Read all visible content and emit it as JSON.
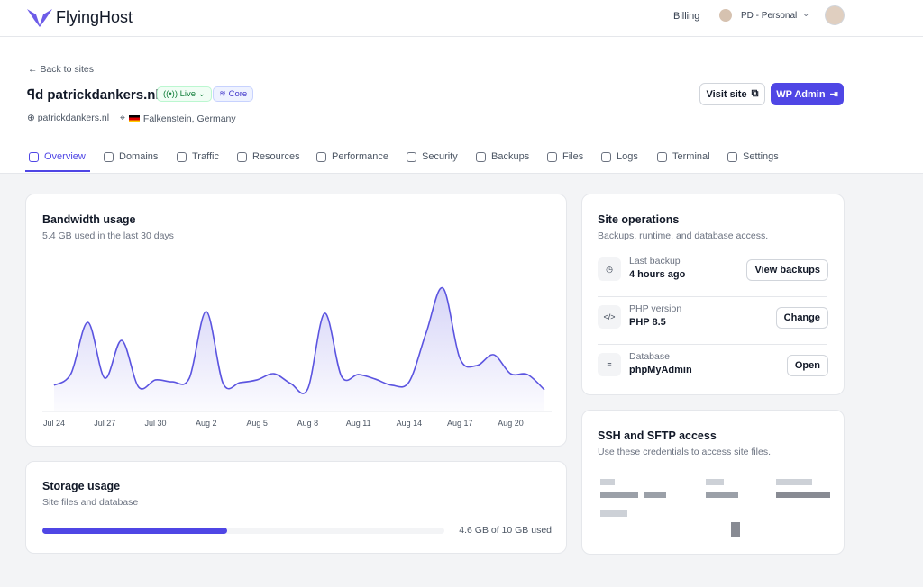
{
  "header": {
    "brand": "FlyingHost",
    "billing": "Billing",
    "account": "PD - Personal"
  },
  "site": {
    "back": "Back to sites",
    "name": "patrickdankers.nl",
    "status": "Live",
    "tier": "Core",
    "domain": "patrickdankers.nl",
    "location": "Falkenstein, Germany",
    "visit": "Visit site",
    "admin": "WP Admin"
  },
  "tabs": [
    "Overview",
    "Domains",
    "Traffic",
    "Resources",
    "Performance",
    "Security",
    "Backups",
    "Files",
    "Logs",
    "Terminal",
    "Settings"
  ],
  "chart_data": {
    "type": "line",
    "title": "Bandwidth usage",
    "subtitle": "5.4 GB used in the last 30 days",
    "categories": [
      "Jul 24",
      null,
      null,
      "Jul 27",
      null,
      null,
      "Jul 30",
      null,
      null,
      "Aug 2",
      null,
      null,
      "Aug 5",
      null,
      null,
      "Aug 8",
      null,
      null,
      "Aug 11",
      null,
      null,
      "Aug 14",
      null,
      null,
      "Aug 17",
      null,
      null,
      "Aug 20",
      null,
      null
    ],
    "values": [
      16.4,
      23.7,
      55.9,
      20.9,
      44.6,
      15.3,
      19.8,
      18.6,
      20.9,
      62.7,
      17.5,
      18.1,
      19.8,
      23.7,
      17.5,
      14.1,
      61.6,
      22.0,
      23.2,
      20.3,
      16.4,
      18.6,
      49.2,
      77.4,
      33.3,
      28.8,
      35.6,
      23.7,
      23.2,
      13.6
    ],
    "ylim": [
      0,
      100
    ],
    "color": "#5b54e0"
  },
  "storage": {
    "title": "Storage usage",
    "subtitle": "Site files and database",
    "used": 4.6,
    "total": 10,
    "label": "4.6 GB of 10 GB used"
  },
  "operations": {
    "title": "Site operations",
    "subtitle": "Backups, runtime, and database access.",
    "items": [
      {
        "label": "Last backup",
        "value": "4 hours ago",
        "action": "View backups"
      },
      {
        "label": "PHP version",
        "value": "PHP 8.5",
        "action": "Change"
      },
      {
        "label": "Database",
        "value": "phpMyAdmin",
        "action": "Open"
      }
    ]
  },
  "ssh": {
    "title": "SSH and SFTP access",
    "subtitle": "Use these credentials to access site files."
  }
}
